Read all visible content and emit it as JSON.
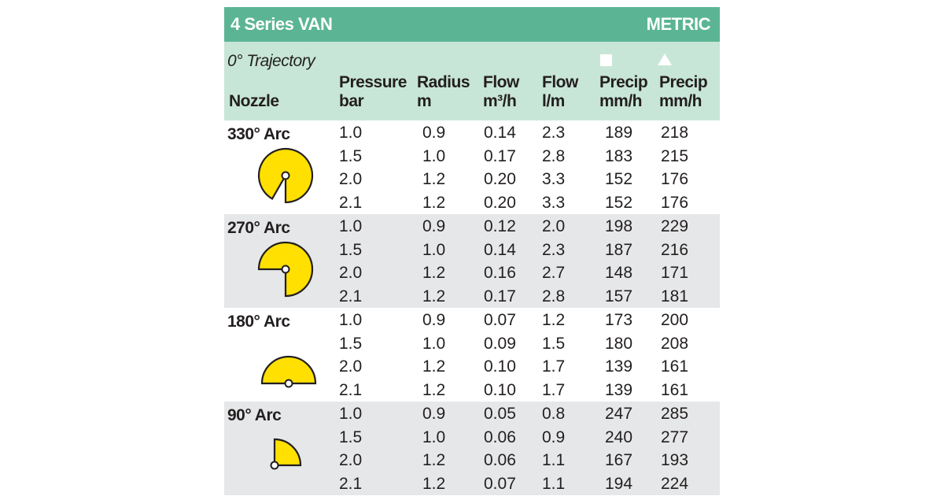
{
  "table": {
    "title": "4 Series VAN",
    "unit_system": "METRIC",
    "trajectory": "0° Trajectory",
    "headers": {
      "nozzle": "Nozzle",
      "pressure": [
        "Pressure",
        "bar"
      ],
      "radius": [
        "Radius",
        "m"
      ],
      "flow_m3h": [
        "Flow",
        "m³/h"
      ],
      "flow_lm": [
        "Flow",
        "l/m"
      ],
      "precip_square": [
        "Precip",
        "mm/h"
      ],
      "precip_triangle": [
        "Precip",
        "mm/h"
      ]
    },
    "symbols": {
      "precip_square": "square-spacing-icon",
      "precip_triangle": "triangle-spacing-icon"
    },
    "colors": {
      "header_bar": "#5bb595",
      "header_band": "#c8e6d7",
      "row_shade": "#e6e7e8",
      "arc_fill": "#ffe000"
    },
    "groups": [
      {
        "label": "330° Arc",
        "arc_degrees": 330,
        "shaded": false,
        "rows": [
          [
            "1.0",
            "0.9",
            "0.14",
            "2.3",
            "189",
            "218"
          ],
          [
            "1.5",
            "1.0",
            "0.17",
            "2.8",
            "183",
            "215"
          ],
          [
            "2.0",
            "1.2",
            "0.20",
            "3.3",
            "152",
            "176"
          ],
          [
            "2.1",
            "1.2",
            "0.20",
            "3.3",
            "152",
            "176"
          ]
        ]
      },
      {
        "label": "270° Arc",
        "arc_degrees": 270,
        "shaded": true,
        "rows": [
          [
            "1.0",
            "0.9",
            "0.12",
            "2.0",
            "198",
            "229"
          ],
          [
            "1.5",
            "1.0",
            "0.14",
            "2.3",
            "187",
            "216"
          ],
          [
            "2.0",
            "1.2",
            "0.16",
            "2.7",
            "148",
            "171"
          ],
          [
            "2.1",
            "1.2",
            "0.17",
            "2.8",
            "157",
            "181"
          ]
        ]
      },
      {
        "label": "180° Arc",
        "arc_degrees": 180,
        "shaded": false,
        "rows": [
          [
            "1.0",
            "0.9",
            "0.07",
            "1.2",
            "173",
            "200"
          ],
          [
            "1.5",
            "1.0",
            "0.09",
            "1.5",
            "180",
            "208"
          ],
          [
            "2.0",
            "1.2",
            "0.10",
            "1.7",
            "139",
            "161"
          ],
          [
            "2.1",
            "1.2",
            "0.10",
            "1.7",
            "139",
            "161"
          ]
        ]
      },
      {
        "label": "90° Arc",
        "arc_degrees": 90,
        "shaded": true,
        "rows": [
          [
            "1.0",
            "0.9",
            "0.05",
            "0.8",
            "247",
            "285"
          ],
          [
            "1.5",
            "1.0",
            "0.06",
            "0.9",
            "240",
            "277"
          ],
          [
            "2.0",
            "1.2",
            "0.06",
            "1.1",
            "167",
            "193"
          ],
          [
            "2.1",
            "1.2",
            "0.07",
            "1.1",
            "194",
            "224"
          ]
        ]
      }
    ]
  }
}
